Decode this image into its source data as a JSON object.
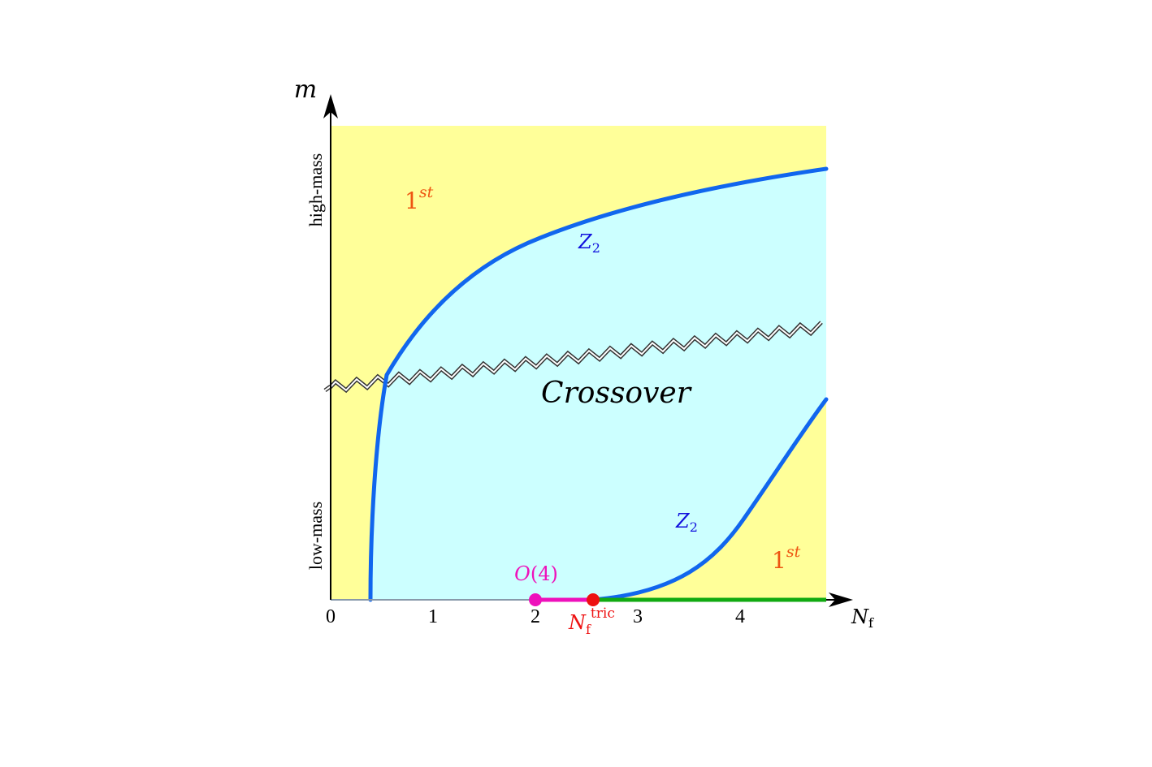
{
  "axes": {
    "x_label": "N",
    "x_label_sub": "f",
    "y_label": "m",
    "x_ticks": [
      "0",
      "1",
      "2",
      "3",
      "4"
    ],
    "y_high_label": "high-mass",
    "y_low_label": "low-mass"
  },
  "regions": {
    "first_order_upper": {
      "base": "1",
      "sup": "st"
    },
    "first_order_lower": {
      "base": "1",
      "sup": "st"
    },
    "crossover": "Crossover"
  },
  "lines": {
    "z2_upper": {
      "base": "Z",
      "sub": "2"
    },
    "z2_lower": {
      "base": "Z",
      "sub": "2"
    }
  },
  "points": {
    "o4": "O(4)",
    "tricritical": {
      "base": "N",
      "sub": "f",
      "sup": "tric"
    }
  },
  "colors": {
    "first_order_fill": "#FFFF99",
    "crossover_fill": "#CCFFFF",
    "z2_line": "#1166EE",
    "z2_label": "#1111DD",
    "first_order_label": "#EE5511",
    "o4_point": "#EE11BB",
    "tricritical_point": "#EE1111",
    "first_order_axis": "#11AA11"
  }
}
